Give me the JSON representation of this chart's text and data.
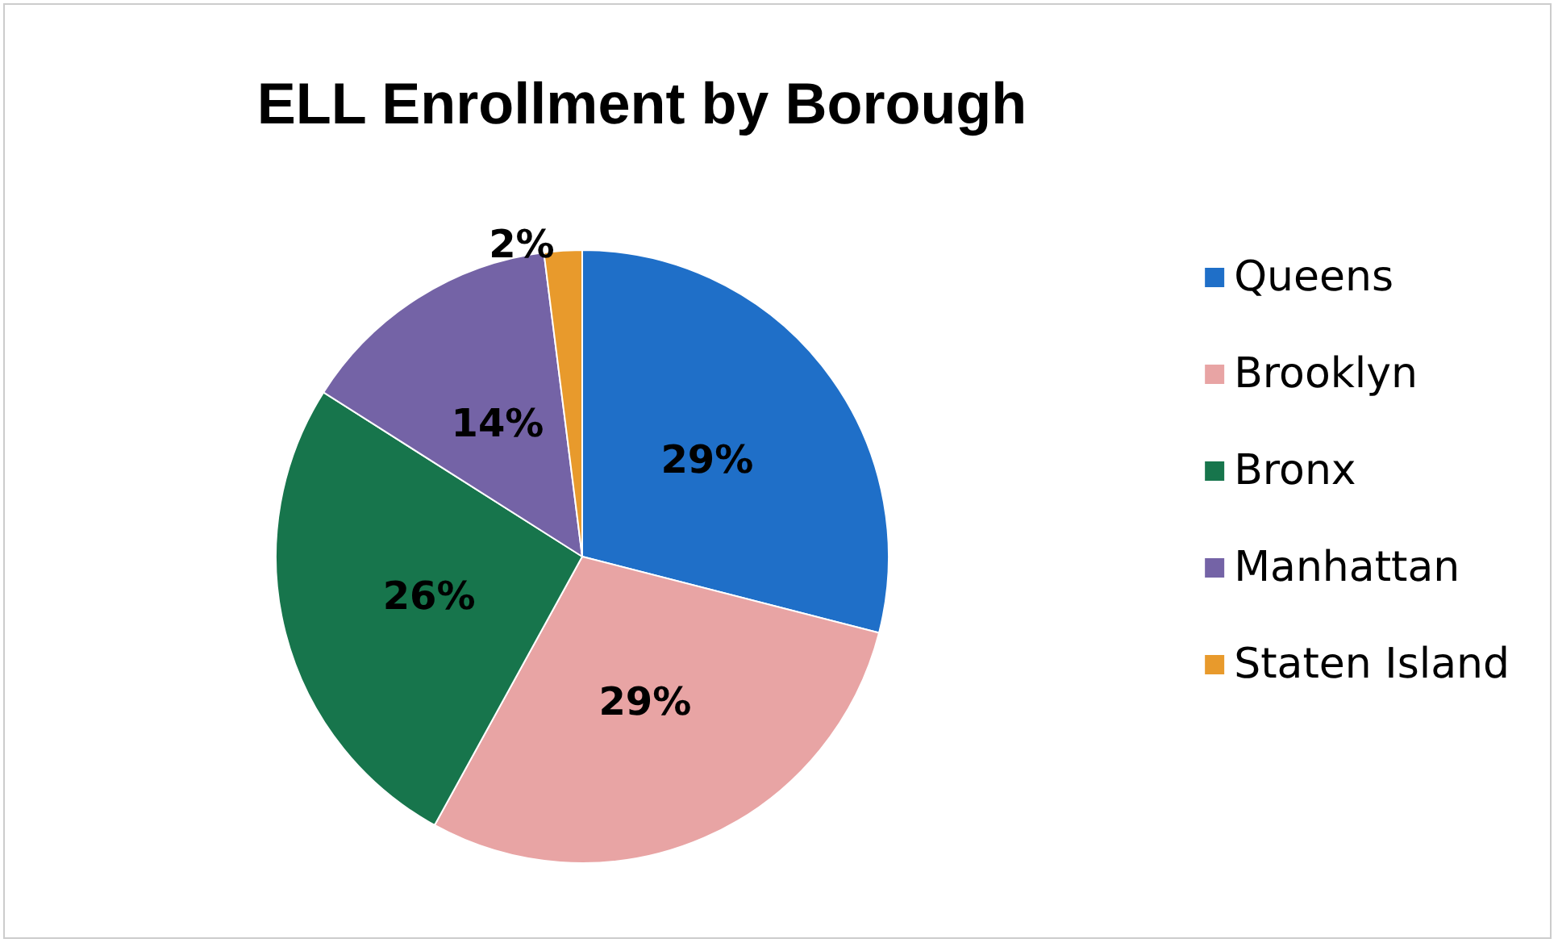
{
  "chart_data": {
    "type": "pie",
    "title": "ELL Enrollment by Borough",
    "categories": [
      "Queens",
      "Brooklyn",
      "Bronx",
      "Manhattan",
      "Staten Island"
    ],
    "values": [
      29,
      29,
      26,
      14,
      2
    ],
    "colors": [
      "#1f6fc8",
      "#e8a4a4",
      "#17754c",
      "#7463a6",
      "#e89a2c"
    ],
    "value_labels": [
      "29%",
      "29%",
      "26%",
      "14%",
      "2%"
    ],
    "legend": "right"
  }
}
